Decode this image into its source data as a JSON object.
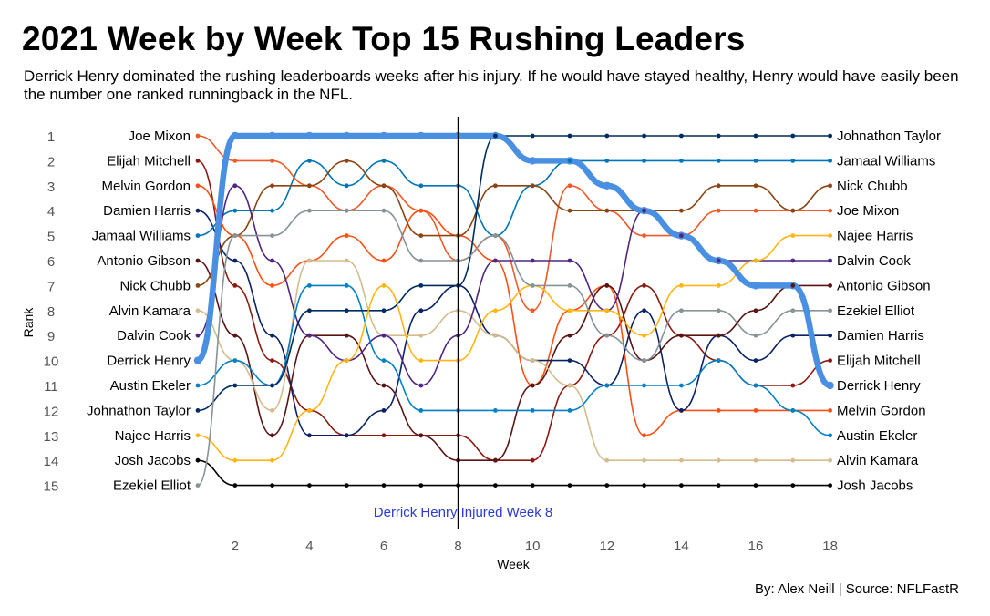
{
  "title": "2021 Week by Week Top 15 Rushing Leaders",
  "subtitle": "Derrick Henry dominated the rushing leaderboards weeks after his injury. If he would have stayed healthy, Henry would have easily been the number one ranked runningback in the NFL.",
  "caption": "By: Alex Neill  | Source: NFLFastR",
  "chart_data": {
    "type": "line",
    "title": "2021 Week by Week Top 15 Rushing Leaders",
    "xlabel": "Week",
    "ylabel": "Rank",
    "xlim": [
      1,
      18
    ],
    "ylim": [
      15,
      1
    ],
    "x_ticks": [
      2,
      4,
      6,
      8,
      10,
      12,
      14,
      16,
      18
    ],
    "y_ticks": [
      1,
      2,
      3,
      4,
      5,
      6,
      7,
      8,
      9,
      10,
      11,
      12,
      13,
      14,
      15
    ],
    "grid": false,
    "legend": "none (labels at line ends)",
    "annotation": {
      "text": "Derrick Henry Injured Week 8",
      "x": 8,
      "color": "#2b3bd6"
    },
    "highlight": "Derrick Henry",
    "series": [
      {
        "name": "Derrick Henry",
        "color": "#4a90e2",
        "ranks": [
          10,
          1,
          1,
          1,
          1,
          1,
          1,
          1,
          1,
          2,
          2,
          3,
          4,
          5,
          6,
          7,
          7,
          11
        ]
      },
      {
        "name": "Joe Mixon",
        "color": "#f05a28",
        "ranks": [
          1,
          2,
          2,
          3,
          4,
          3,
          4,
          6,
          5,
          8,
          3,
          4,
          5,
          5,
          4,
          4,
          4,
          4
        ]
      },
      {
        "name": "Elijah Mitchell",
        "color": "#8b1a10",
        "ranks": [
          2,
          7,
          10,
          12,
          13,
          13,
          13,
          13,
          14,
          14,
          11,
          9,
          7,
          9,
          10,
          11,
          11,
          10
        ]
      },
      {
        "name": "Melvin Gordon",
        "color": "#fb4f14",
        "ranks": [
          3,
          5,
          7,
          6,
          5,
          6,
          4,
          5,
          6,
          11,
          8,
          7,
          13,
          12,
          12,
          12,
          12,
          12
        ]
      },
      {
        "name": "Damien Harris",
        "color": "#0b2265",
        "ranks": [
          4,
          6,
          9,
          13,
          13,
          12,
          8,
          7,
          9,
          10,
          10,
          11,
          8,
          12,
          9,
          10,
          9,
          9
        ]
      },
      {
        "name": "Jamaal Williams",
        "color": "#0076b6",
        "ranks": [
          5,
          4,
          4,
          2,
          3,
          2,
          3,
          3,
          5,
          3,
          2,
          2,
          2,
          2,
          2,
          2,
          2,
          2
        ]
      },
      {
        "name": "Antonio Gibson",
        "color": "#5a1414",
        "ranks": [
          6,
          9,
          13,
          9,
          9,
          11,
          13,
          14,
          14,
          11,
          9,
          7,
          10,
          9,
          9,
          8,
          7,
          7
        ]
      },
      {
        "name": "Nick Chubb",
        "color": "#8b4513",
        "ranks": [
          7,
          5,
          3,
          3,
          2,
          3,
          5,
          5,
          3,
          3,
          4,
          4,
          4,
          4,
          3,
          3,
          4,
          3
        ]
      },
      {
        "name": "Alvin Kamara",
        "color": "#d3bc8d",
        "ranks": [
          8,
          10,
          12,
          6,
          6,
          9,
          9,
          8,
          9,
          10,
          11,
          14,
          14,
          14,
          14,
          14,
          14,
          14
        ]
      },
      {
        "name": "Dalvin Cook",
        "color": "#4f2683",
        "ranks": [
          9,
          3,
          6,
          9,
          10,
          9,
          11,
          9,
          6,
          6,
          6,
          8,
          4,
          5,
          6,
          6,
          6,
          6
        ]
      },
      {
        "name": "Austin Ekeler",
        "color": "#0080c6",
        "ranks": [
          11,
          10,
          11,
          7,
          7,
          10,
          12,
          12,
          12,
          12,
          12,
          11,
          11,
          11,
          10,
          11,
          12,
          13
        ]
      },
      {
        "name": "Johnathon Taylor",
        "color": "#002c5f",
        "ranks": [
          12,
          11,
          11,
          8,
          8,
          8,
          7,
          7,
          1,
          1,
          1,
          1,
          1,
          1,
          1,
          1,
          1,
          1
        ]
      },
      {
        "name": "Najee Harris",
        "color": "#ffb612",
        "ranks": [
          13,
          14,
          14,
          12,
          10,
          7,
          10,
          10,
          8,
          7,
          8,
          8,
          9,
          7,
          7,
          6,
          5,
          5
        ]
      },
      {
        "name": "Josh Jacobs",
        "color": "#000000",
        "ranks": [
          14,
          15,
          15,
          15,
          15,
          15,
          15,
          15,
          15,
          15,
          15,
          15,
          15,
          15,
          15,
          15,
          15,
          15
        ]
      },
      {
        "name": "Ezekiel Elliot",
        "color": "#869397",
        "ranks": [
          15,
          5,
          5,
          4,
          4,
          4,
          6,
          6,
          5,
          7,
          7,
          9,
          10,
          8,
          8,
          9,
          8,
          8
        ]
      }
    ]
  }
}
